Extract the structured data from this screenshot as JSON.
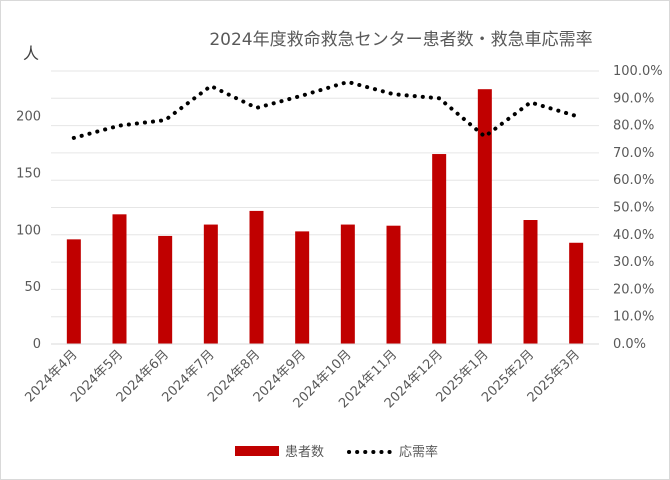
{
  "chart_data": {
    "type": "bar",
    "title": "2024年度救命救急センター患者数・救急車応需率",
    "y_left_unit": "人",
    "categories": [
      "2024年4月",
      "2024年5月",
      "2024年6月",
      "2024年7月",
      "2024年8月",
      "2024年9月",
      "2024年10月",
      "2024年11月",
      "2024年12月",
      "2025年1月",
      "2025年2月",
      "2025年3月"
    ],
    "series": [
      {
        "name": "患者数",
        "type": "bar",
        "axis": "left",
        "color": "#c00000",
        "values": [
          92,
          114,
          95,
          105,
          117,
          99,
          105,
          104,
          167,
          224,
          109,
          89
        ]
      },
      {
        "name": "応需率",
        "type": "line",
        "style": "dotted",
        "axis": "right",
        "color": "#000000",
        "values": [
          75.5,
          80.0,
          82.0,
          94.5,
          86.5,
          91.0,
          96.0,
          91.5,
          90.0,
          76.0,
          88.5,
          83.5
        ]
      }
    ],
    "y_left": {
      "min": 0,
      "max": 240,
      "ticks": [
        0,
        50,
        100,
        150,
        200
      ]
    },
    "y_right": {
      "min": 0,
      "max": 100,
      "ticks": [
        "0.0%",
        "10.0%",
        "20.0%",
        "30.0%",
        "40.0%",
        "50.0%",
        "60.0%",
        "70.0%",
        "80.0%",
        "90.0%",
        "100.0%"
      ]
    },
    "grid": true,
    "legend_position": "bottom"
  }
}
